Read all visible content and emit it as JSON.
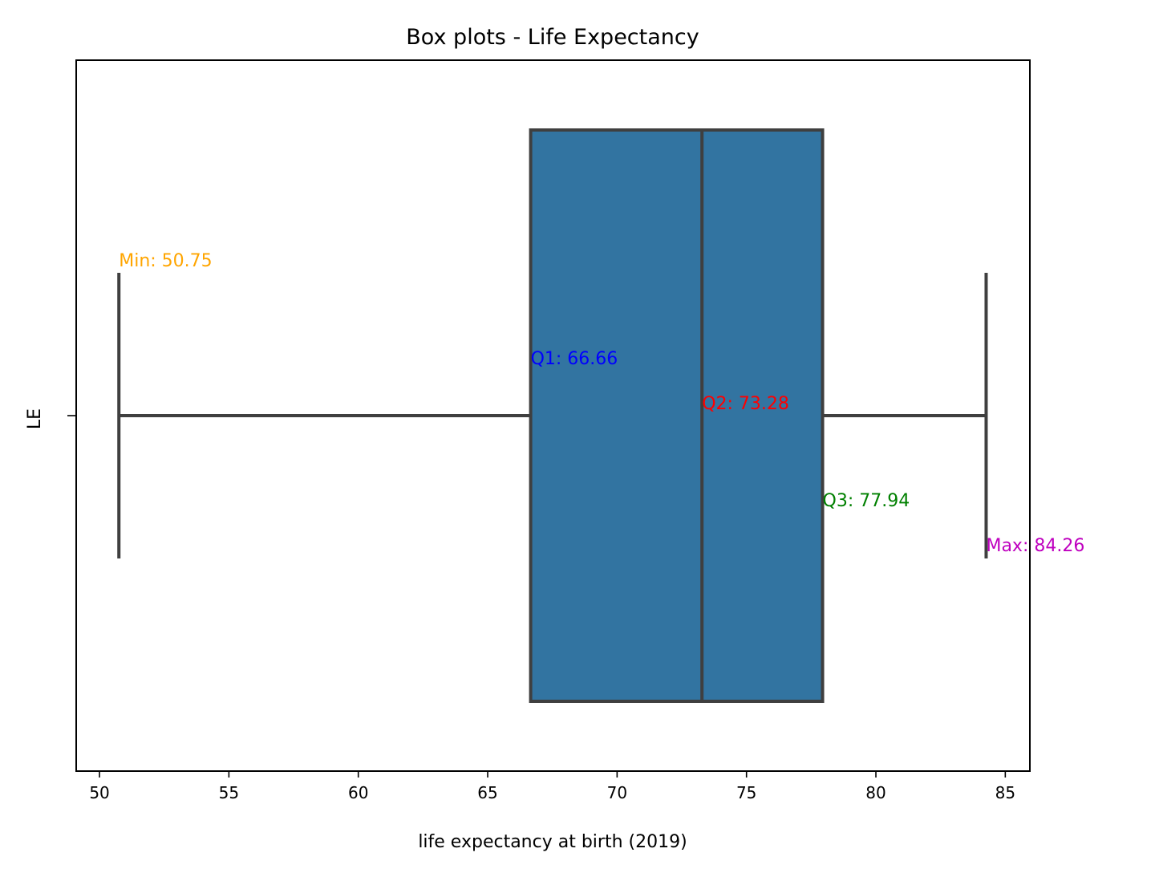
{
  "chart_data": {
    "type": "box",
    "title": "Box plots - Life Expectancy",
    "xlabel": "life expectancy at birth (2019)",
    "ylabel": "",
    "category_label": "LE",
    "xlim": [
      49.1,
      85.95
    ],
    "xticks": [
      50,
      55,
      60,
      65,
      70,
      75,
      80,
      85
    ],
    "grid": false,
    "box": {
      "min": 50.75,
      "q1": 66.66,
      "median": 73.28,
      "q3": 77.94,
      "max": 84.26
    },
    "annotations": [
      {
        "key": "min",
        "label": "Min: 50.75",
        "value": 50.75,
        "color": "#ffa500"
      },
      {
        "key": "q1",
        "label": "Q1: 66.66",
        "value": 66.66,
        "color": "#0000ff"
      },
      {
        "key": "median",
        "label": "Q2: 73.28",
        "value": 73.28,
        "color": "#ff0000"
      },
      {
        "key": "q3",
        "label": "Q3: 77.94",
        "value": 77.94,
        "color": "#008000"
      },
      {
        "key": "max",
        "label": "Max: 84.26",
        "value": 84.26,
        "color": "#bf00bf"
      }
    ],
    "colors": {
      "box_fill": "#3274a1",
      "line": "#3f3f3f"
    }
  }
}
